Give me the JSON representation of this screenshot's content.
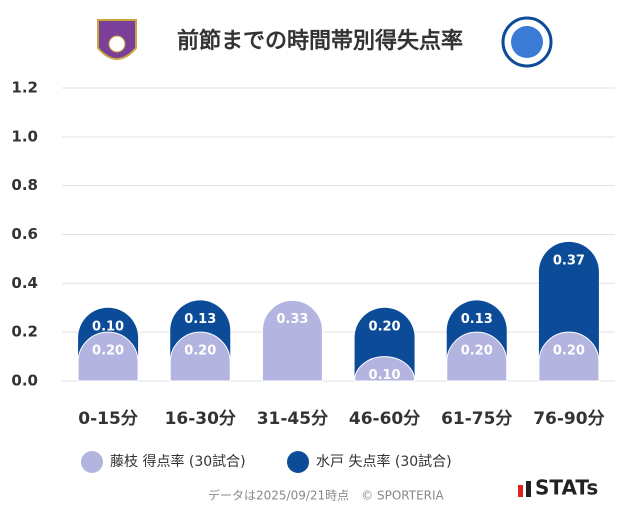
{
  "chart_data": {
    "type": "bar",
    "stacked": true,
    "title": "前節までの時間帯別得失点率",
    "categories": [
      "0-15分",
      "16-30分",
      "31-45分",
      "46-60分",
      "61-75分",
      "76-90分"
    ],
    "series": [
      {
        "name": "藤枝 得点率 (30試合)",
        "color": "#b4b4e0",
        "values": [
          0.2,
          0.2,
          0.33,
          0.1,
          0.2,
          0.2
        ],
        "value_labels": [
          "0.20",
          "0.20",
          "0.33",
          "0.10",
          "0.20",
          "0.20"
        ]
      },
      {
        "name": "水戸 失点率 (30試合)",
        "color": "#0c4b97",
        "values": [
          0.1,
          0.13,
          null,
          0.2,
          0.13,
          0.37
        ],
        "value_labels": [
          "0.10",
          "0.13",
          null,
          "0.20",
          "0.13",
          "0.37"
        ]
      }
    ],
    "ylim": [
      0,
      1.2
    ],
    "yticks": [
      {
        "value": 0,
        "label": "0.0"
      },
      {
        "value": 0.2,
        "label": "0.2"
      },
      {
        "value": 0.4,
        "label": "0.4"
      },
      {
        "value": 0.6,
        "label": "0.6"
      },
      {
        "value": 0.8,
        "label": "0.8"
      },
      {
        "value": 1.0,
        "label": "1.0"
      },
      {
        "value": 1.2,
        "label": "1.2"
      }
    ],
    "grid": true,
    "footer": "データは2025/09/21時点　© SPORTERIA",
    "brand": "STATs"
  }
}
